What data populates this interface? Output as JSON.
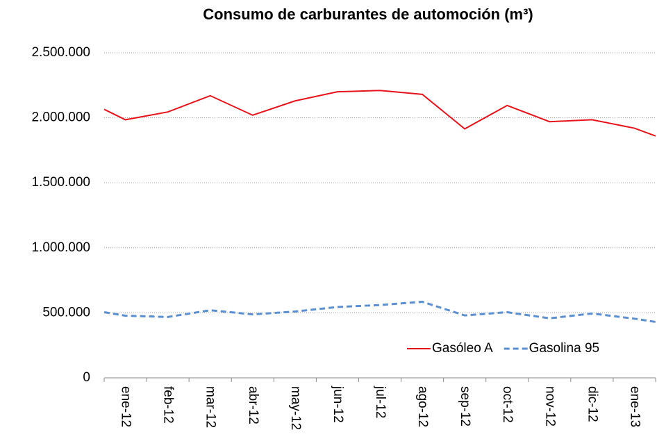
{
  "chart_data": {
    "type": "line",
    "title": "Consumo de carburantes de automoción (m³)",
    "categories": [
      null,
      "ene-12",
      "feb-12",
      "mar-12",
      "abr-12",
      "may-12",
      "jun-12",
      "jul-12",
      "ago-12",
      "sep-12",
      "oct-12",
      "nov-12",
      "dic-12",
      "ene-13",
      null
    ],
    "series": [
      {
        "name": "Gasóleo A",
        "color": "#e8121a",
        "dash": false,
        "values": [
          2065000,
          1985000,
          2045000,
          2170000,
          2020000,
          2130000,
          2200000,
          2210000,
          2180000,
          1915000,
          2095000,
          1970000,
          1985000,
          1920000,
          1860000
        ]
      },
      {
        "name": "Gasolina 95",
        "color": "#5b8fd0",
        "dash": true,
        "values": [
          505000,
          478000,
          468000,
          520000,
          488000,
          510000,
          545000,
          560000,
          585000,
          480000,
          505000,
          458000,
          495000,
          455000,
          430000
        ]
      }
    ],
    "ylim": [
      0,
      2500000
    ],
    "yticks": [
      0,
      {
        "value": 500000,
        "label": "500.000"
      },
      {
        "value": 1000000,
        "label": "1.000.000"
      },
      {
        "value": 1500000,
        "label": "1.500.000"
      },
      {
        "value": 2000000,
        "label": "2.000.000"
      },
      {
        "value": 2500000,
        "label": "2.500.000"
      }
    ],
    "grid": true,
    "legend": "lower right"
  }
}
